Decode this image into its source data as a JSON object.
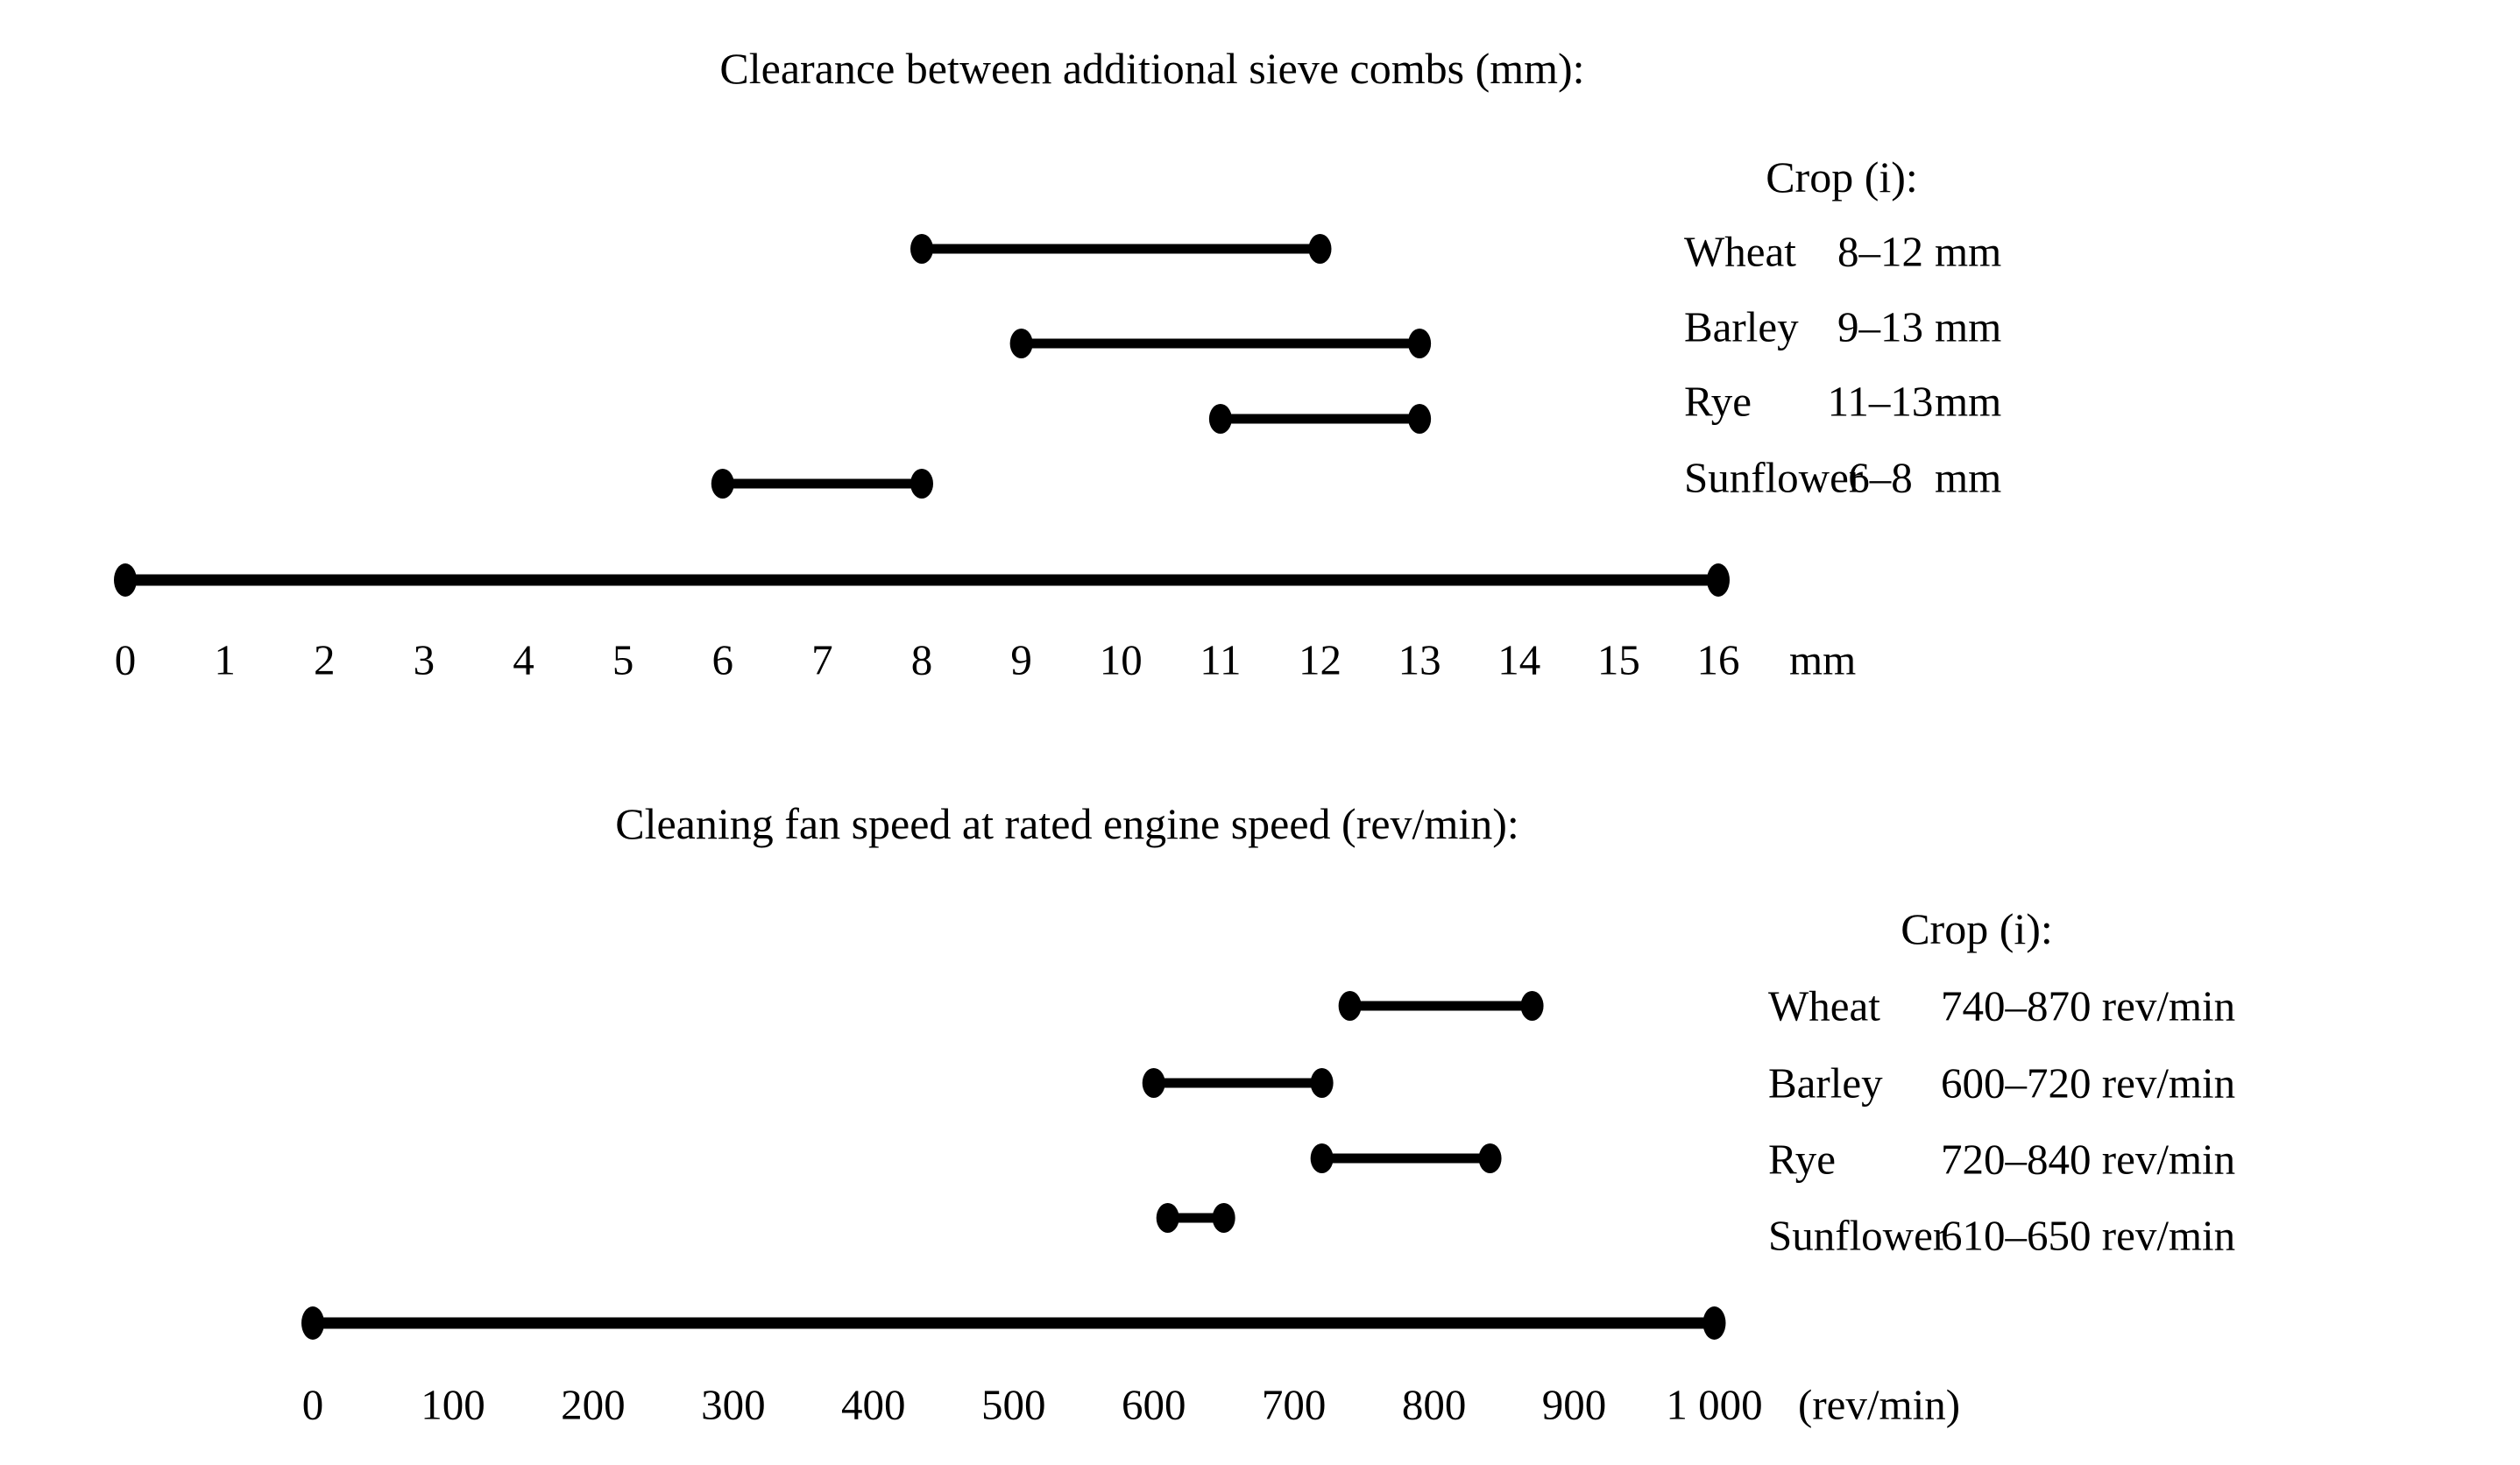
{
  "page": {
    "background_color": "#ffffff",
    "ink_color": "#000000"
  },
  "chart_data": [
    {
      "type": "interval",
      "title": "Clearance between additional sieve combs (mm):",
      "legend_header": "Crop (i):",
      "axis": {
        "min": 0,
        "max": 16,
        "unit_label": "mm",
        "ticks": [
          {
            "value": 0,
            "label": "0"
          },
          {
            "value": 1,
            "label": "1"
          },
          {
            "value": 2,
            "label": "2"
          },
          {
            "value": 3,
            "label": "3"
          },
          {
            "value": 4,
            "label": "4"
          },
          {
            "value": 5,
            "label": "5"
          },
          {
            "value": 6,
            "label": "6"
          },
          {
            "value": 7,
            "label": "7"
          },
          {
            "value": 8,
            "label": "8"
          },
          {
            "value": 9,
            "label": "9"
          },
          {
            "value": 10,
            "label": "10"
          },
          {
            "value": 11,
            "label": "11"
          },
          {
            "value": 12,
            "label": "12"
          },
          {
            "value": 13,
            "label": "13"
          },
          {
            "value": 14,
            "label": "14"
          },
          {
            "value": 15,
            "label": "15"
          },
          {
            "value": 16,
            "label": "16"
          }
        ]
      },
      "series": [
        {
          "name": "Wheat",
          "min": 8,
          "max": 12,
          "range_label": "8–12",
          "unit_label": "mm"
        },
        {
          "name": "Barley",
          "min": 9,
          "max": 13,
          "range_label": "9–13",
          "unit_label": "mm"
        },
        {
          "name": "Rye",
          "min": 11,
          "max": 13,
          "range_label": "11–13",
          "unit_label": "mm"
        },
        {
          "name": "Sunflower",
          "min": 6,
          "max": 8,
          "range_label": "6–8",
          "unit_label": "mm"
        }
      ]
    },
    {
      "type": "interval",
      "title": "Cleaning fan speed at rated engine speed (rev/min):",
      "legend_header": "Crop (i):",
      "axis": {
        "min": 0,
        "max": 1000,
        "unit_label": "(rev/min)",
        "ticks": [
          {
            "value": 0,
            "label": "0"
          },
          {
            "value": 100,
            "label": "100"
          },
          {
            "value": 200,
            "label": "200"
          },
          {
            "value": 300,
            "label": "300"
          },
          {
            "value": 400,
            "label": "400"
          },
          {
            "value": 500,
            "label": "500"
          },
          {
            "value": 600,
            "label": "600"
          },
          {
            "value": 700,
            "label": "700"
          },
          {
            "value": 800,
            "label": "800"
          },
          {
            "value": 900,
            "label": "900"
          },
          {
            "value": 1000,
            "label": "1 000"
          }
        ]
      },
      "series": [
        {
          "name": "Wheat",
          "min": 740,
          "max": 870,
          "range_label": "740–870 rev/min"
        },
        {
          "name": "Barley",
          "min": 600,
          "max": 720,
          "range_label": "600–720 rev/min"
        },
        {
          "name": "Rye",
          "min": 720,
          "max": 840,
          "range_label": "720–840 rev/min"
        },
        {
          "name": "Sunflower",
          "min": 610,
          "max": 650,
          "range_label": "610–650 rev/min"
        }
      ]
    }
  ]
}
